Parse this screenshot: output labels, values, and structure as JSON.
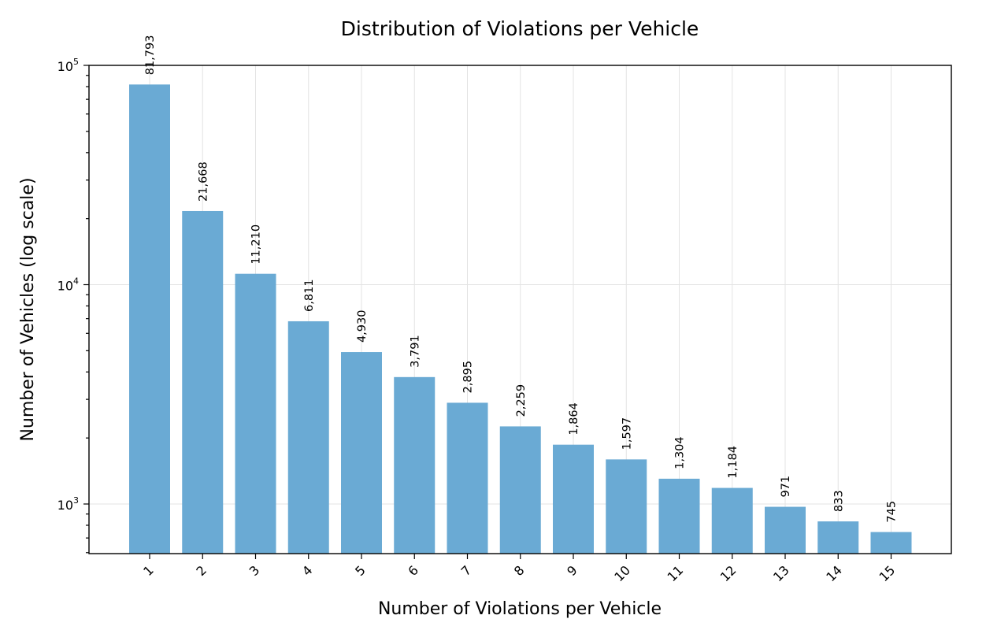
{
  "chart_data": {
    "type": "bar",
    "title": "Distribution of Violations per Vehicle",
    "xlabel": "Number of Violations per Vehicle",
    "ylabel": "Number of Vehicles (log scale)",
    "yscale": "log",
    "ylim": [
      580,
      100000
    ],
    "yticks": [
      {
        "value": 1000,
        "base": "10",
        "exp": "3"
      },
      {
        "value": 10000,
        "base": "10",
        "exp": "4"
      },
      {
        "value": 100000,
        "base": "10",
        "exp": "5"
      }
    ],
    "grid": true,
    "bar_color": "#6aaad4",
    "categories": [
      "1",
      "2",
      "3",
      "4",
      "5",
      "6",
      "7",
      "8",
      "9",
      "10",
      "11",
      "12",
      "13",
      "14",
      "15"
    ],
    "values": [
      81793,
      21668,
      11210,
      6811,
      4930,
      3791,
      2895,
      2259,
      1864,
      1597,
      1304,
      1184,
      971,
      833,
      745
    ],
    "data_labels": [
      "81,793",
      "21,668",
      "11,210",
      "6,811",
      "4,930",
      "3,791",
      "2,895",
      "2,259",
      "1,864",
      "1,597",
      "1,304",
      "1,184",
      "971",
      "833",
      "745"
    ]
  }
}
